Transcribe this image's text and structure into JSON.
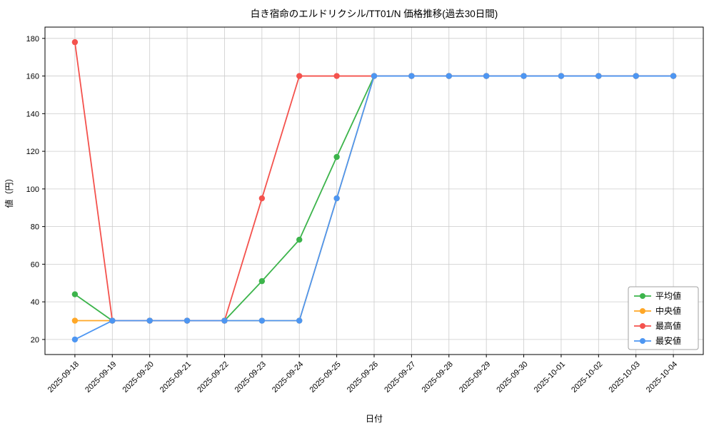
{
  "chart": {
    "title": "白き宿命のエルドリクシル/TT01/N 価格推移(過去30日間)",
    "xlabel": "日付",
    "ylabel": "値（円）"
  },
  "chart_data": {
    "type": "line",
    "title": "白き宿命のエルドリクシル/TT01/N 価格推移(過去30日間)",
    "xlabel": "日付",
    "ylabel": "値（円）",
    "grid": true,
    "legend_position": "lower right",
    "ylim": [
      12,
      186
    ],
    "yticks": [
      20,
      40,
      60,
      80,
      100,
      120,
      140,
      160,
      180
    ],
    "x_margin": 0.8,
    "categories": [
      "2025-09-18",
      "2025-09-19",
      "2025-09-20",
      "2025-09-21",
      "2025-09-22",
      "2025-09-23",
      "2025-09-24",
      "2025-09-25",
      "2025-09-26",
      "2025-09-27",
      "2025-09-28",
      "2025-09-29",
      "2025-09-30",
      "2025-10-01",
      "2025-10-02",
      "2025-10-03",
      "2025-10-04"
    ],
    "series": [
      {
        "name": "平均値",
        "color": "#3cb44b",
        "values": [
          44,
          30,
          30,
          30,
          30,
          51,
          73,
          117,
          160,
          160,
          160,
          160,
          160,
          160,
          160,
          160,
          160
        ]
      },
      {
        "name": "中央値",
        "color": "#ffa726",
        "values": [
          30,
          30,
          30,
          30,
          30,
          30,
          30,
          95,
          160,
          160,
          160,
          160,
          160,
          160,
          160,
          160,
          160
        ]
      },
      {
        "name": "最高値",
        "color": "#f4524d",
        "values": [
          178,
          30,
          30,
          30,
          30,
          95,
          160,
          160,
          160,
          160,
          160,
          160,
          160,
          160,
          160,
          160,
          160
        ]
      },
      {
        "name": "最安値",
        "color": "#4d96f2",
        "values": [
          20,
          30,
          30,
          30,
          30,
          30,
          30,
          95,
          160,
          160,
          160,
          160,
          160,
          160,
          160,
          160,
          160
        ]
      }
    ]
  }
}
